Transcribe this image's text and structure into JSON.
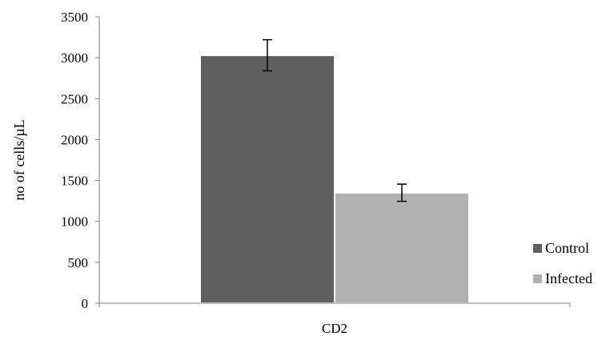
{
  "chart_data": {
    "type": "bar",
    "categories": [
      "CD2"
    ],
    "series": [
      {
        "name": "Control",
        "values": [
          3030
        ],
        "error": [
          190
        ],
        "color": "#5f5f5f"
      },
      {
        "name": "Infected",
        "values": [
          1350
        ],
        "error": [
          105
        ],
        "color": "#b1b1b1"
      }
    ],
    "xlabel": "CD2",
    "ylabel": "no of cells/µL",
    "ylim": [
      0,
      3500
    ],
    "yticks": [
      0,
      500,
      1000,
      1500,
      2000,
      2500,
      3000,
      3500
    ],
    "grid": false,
    "legend_position": "right"
  }
}
